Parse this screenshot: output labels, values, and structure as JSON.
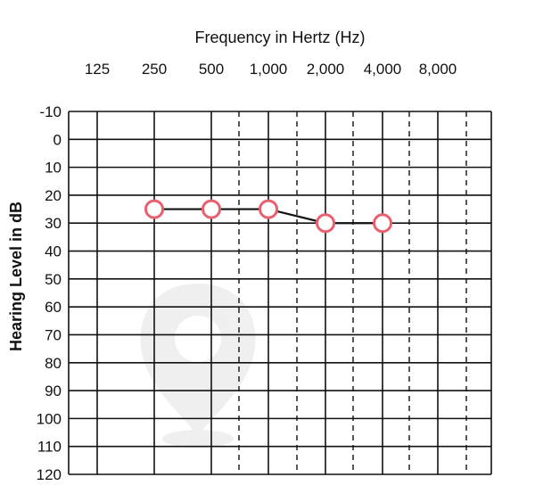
{
  "chart_data": {
    "type": "line",
    "title": "Frequency in Hertz (Hz)",
    "ylabel": "Hearing Level in dB",
    "x_tick_labels": [
      "125",
      "250",
      "500",
      "1,000",
      "2,000",
      "4,000",
      "8,000"
    ],
    "y_tick_labels": [
      "-10",
      "0",
      "10",
      "20",
      "30",
      "40",
      "50",
      "60",
      "70",
      "80",
      "90",
      "100",
      "110",
      "120"
    ],
    "ylim": [
      -10,
      120
    ],
    "y_inverted": true,
    "x_scale": "log",
    "x_intermediate_dashed": [
      "750",
      "1,500",
      "3,000",
      "6,000"
    ],
    "grid": true,
    "series": [
      {
        "x": [
          250,
          500,
          1000,
          2000,
          4000
        ],
        "y": [
          25,
          25,
          25,
          30,
          30
        ],
        "marker": "circle-open",
        "marker_color": "#e8606b",
        "line_color": "#111111"
      }
    ]
  }
}
